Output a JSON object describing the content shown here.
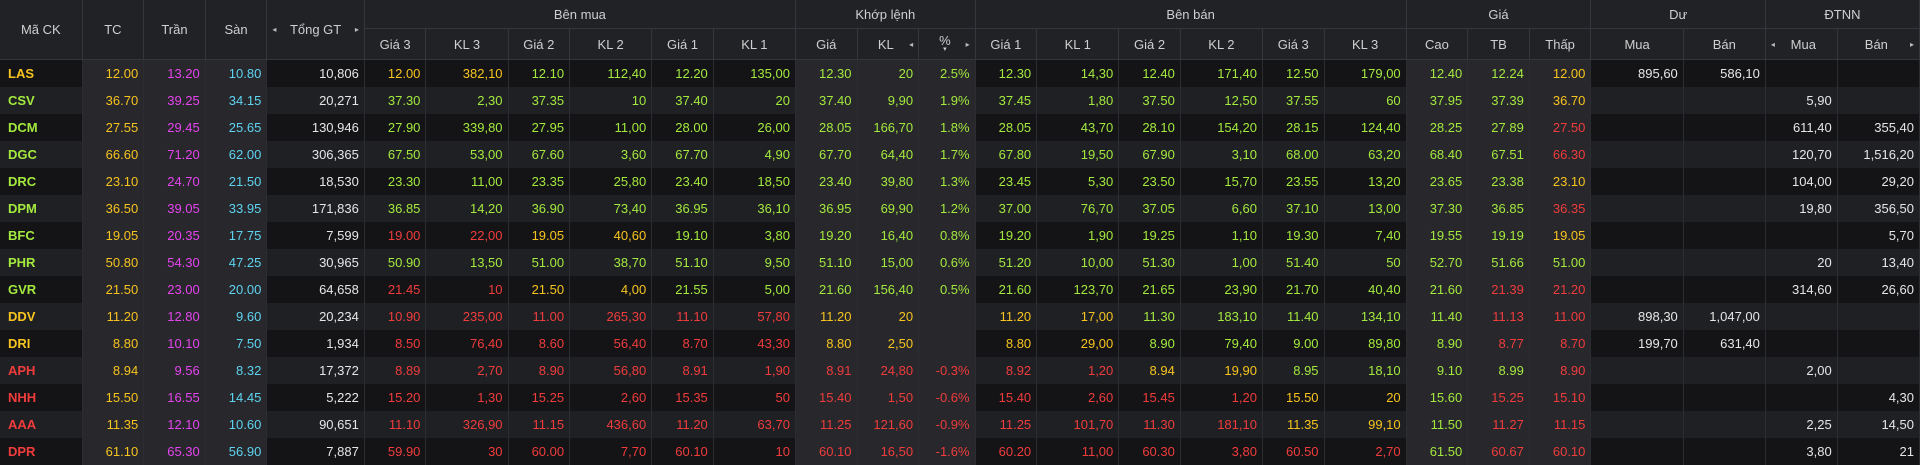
{
  "colors": {
    "up": "#a4ea3e",
    "down": "#f03c3c",
    "ref": "#f7c41f",
    "ceil": "#e544ee",
    "floor": "#5ed4f0",
    "neutral": "#e6e6e6"
  },
  "header": {
    "ma_ck": "Mã CK",
    "tc": "TC",
    "tran": "Trần",
    "san": "Sàn",
    "tong_gt": "Tổng GT",
    "ben_mua": "Bên mua",
    "khop_lenh": "Khớp lệnh",
    "ben_ban": "Bên bán",
    "gia": "Giá",
    "du": "Dư",
    "dtnn": "ĐTNN",
    "gia3": "Giá 3",
    "kl3": "KL 3",
    "gia2": "Giá 2",
    "kl2": "KL 2",
    "gia1": "Giá 1",
    "kl1": "KL 1",
    "kl_gia": "Giá",
    "kl": "KL",
    "pct": "%",
    "cao": "Cao",
    "tb": "TB",
    "thap": "Thấp",
    "mua": "Mua",
    "ban": "Bán",
    "left_arrow": "◂",
    "right_arrow": "▸",
    "sort_down": "▾"
  },
  "rows": [
    {
      "sym": [
        "LAS",
        "ref"
      ],
      "tc": "12.00",
      "tran": "13.20",
      "san": "10.80",
      "tgt": "10,806",
      "b3": [
        "12.00",
        "ref"
      ],
      "bk3": [
        "382,10",
        "ref"
      ],
      "b2": [
        "12.10",
        "up"
      ],
      "bk2": [
        "112,40",
        "up"
      ],
      "b1": [
        "12.20",
        "up"
      ],
      "bk1": [
        "135,00",
        "up"
      ],
      "m": [
        "12.30",
        "up"
      ],
      "mk": [
        "20",
        "up"
      ],
      "pct": [
        "2.5%",
        "up"
      ],
      "s1": [
        "12.30",
        "up"
      ],
      "sk1": [
        "14,30",
        "up"
      ],
      "s2": [
        "12.40",
        "up"
      ],
      "sk2": [
        "171,40",
        "up"
      ],
      "s3": [
        "12.50",
        "up"
      ],
      "sk3": [
        "179,00",
        "up"
      ],
      "cao": [
        "12.40",
        "up"
      ],
      "tb": [
        "12.24",
        "up"
      ],
      "thap": [
        "12.00",
        "ref"
      ],
      "du_mua": "895,60",
      "du_ban": "586,10",
      "nn_mua": "",
      "nn_ban": ""
    },
    {
      "sym": [
        "CSV",
        "up"
      ],
      "tc": "36.70",
      "tran": "39.25",
      "san": "34.15",
      "tgt": "20,271",
      "b3": [
        "37.30",
        "up"
      ],
      "bk3": [
        "2,30",
        "up"
      ],
      "b2": [
        "37.35",
        "up"
      ],
      "bk2": [
        "10",
        "up"
      ],
      "b1": [
        "37.40",
        "up"
      ],
      "bk1": [
        "20",
        "up"
      ],
      "m": [
        "37.40",
        "up"
      ],
      "mk": [
        "9,90",
        "up"
      ],
      "pct": [
        "1.9%",
        "up"
      ],
      "s1": [
        "37.45",
        "up"
      ],
      "sk1": [
        "1,80",
        "up"
      ],
      "s2": [
        "37.50",
        "up"
      ],
      "sk2": [
        "12,50",
        "up"
      ],
      "s3": [
        "37.55",
        "up"
      ],
      "sk3": [
        "60",
        "up"
      ],
      "cao": [
        "37.95",
        "up"
      ],
      "tb": [
        "37.39",
        "up"
      ],
      "thap": [
        "36.70",
        "ref"
      ],
      "du_mua": "",
      "du_ban": "",
      "nn_mua": "5,90",
      "nn_ban": ""
    },
    {
      "sym": [
        "DCM",
        "up"
      ],
      "tc": "27.55",
      "tran": "29.45",
      "san": "25.65",
      "tgt": "130,946",
      "b3": [
        "27.90",
        "up"
      ],
      "bk3": [
        "339,80",
        "up"
      ],
      "b2": [
        "27.95",
        "up"
      ],
      "bk2": [
        "11,00",
        "up"
      ],
      "b1": [
        "28.00",
        "up"
      ],
      "bk1": [
        "26,00",
        "up"
      ],
      "m": [
        "28.05",
        "up"
      ],
      "mk": [
        "166,70",
        "up"
      ],
      "pct": [
        "1.8%",
        "up"
      ],
      "s1": [
        "28.05",
        "up"
      ],
      "sk1": [
        "43,70",
        "up"
      ],
      "s2": [
        "28.10",
        "up"
      ],
      "sk2": [
        "154,20",
        "up"
      ],
      "s3": [
        "28.15",
        "up"
      ],
      "sk3": [
        "124,40",
        "up"
      ],
      "cao": [
        "28.25",
        "up"
      ],
      "tb": [
        "27.89",
        "up"
      ],
      "thap": [
        "27.50",
        "down"
      ],
      "du_mua": "",
      "du_ban": "",
      "nn_mua": "611,40",
      "nn_ban": "355,40"
    },
    {
      "sym": [
        "DGC",
        "up"
      ],
      "tc": "66.60",
      "tran": "71.20",
      "san": "62.00",
      "tgt": "306,365",
      "b3": [
        "67.50",
        "up"
      ],
      "bk3": [
        "53,00",
        "up"
      ],
      "b2": [
        "67.60",
        "up"
      ],
      "bk2": [
        "3,60",
        "up"
      ],
      "b1": [
        "67.70",
        "up"
      ],
      "bk1": [
        "4,90",
        "up"
      ],
      "m": [
        "67.70",
        "up"
      ],
      "mk": [
        "64,40",
        "up"
      ],
      "pct": [
        "1.7%",
        "up"
      ],
      "s1": [
        "67.80",
        "up"
      ],
      "sk1": [
        "19,50",
        "up"
      ],
      "s2": [
        "67.90",
        "up"
      ],
      "sk2": [
        "3,10",
        "up"
      ],
      "s3": [
        "68.00",
        "up"
      ],
      "sk3": [
        "63,20",
        "up"
      ],
      "cao": [
        "68.40",
        "up"
      ],
      "tb": [
        "67.51",
        "up"
      ],
      "thap": [
        "66.30",
        "down"
      ],
      "du_mua": "",
      "du_ban": "",
      "nn_mua": "120,70",
      "nn_ban": "1,516,20"
    },
    {
      "sym": [
        "DRC",
        "up"
      ],
      "tc": "23.10",
      "tran": "24.70",
      "san": "21.50",
      "tgt": "18,530",
      "b3": [
        "23.30",
        "up"
      ],
      "bk3": [
        "11,00",
        "up"
      ],
      "b2": [
        "23.35",
        "up"
      ],
      "bk2": [
        "25,80",
        "up"
      ],
      "b1": [
        "23.40",
        "up"
      ],
      "bk1": [
        "18,50",
        "up"
      ],
      "m": [
        "23.40",
        "up"
      ],
      "mk": [
        "39,80",
        "up"
      ],
      "pct": [
        "1.3%",
        "up"
      ],
      "s1": [
        "23.45",
        "up"
      ],
      "sk1": [
        "5,30",
        "up"
      ],
      "s2": [
        "23.50",
        "up"
      ],
      "sk2": [
        "15,70",
        "up"
      ],
      "s3": [
        "23.55",
        "up"
      ],
      "sk3": [
        "13,20",
        "up"
      ],
      "cao": [
        "23.65",
        "up"
      ],
      "tb": [
        "23.38",
        "up"
      ],
      "thap": [
        "23.10",
        "ref"
      ],
      "du_mua": "",
      "du_ban": "",
      "nn_mua": "104,00",
      "nn_ban": "29,20"
    },
    {
      "sym": [
        "DPM",
        "up"
      ],
      "tc": "36.50",
      "tran": "39.05",
      "san": "33.95",
      "tgt": "171,836",
      "b3": [
        "36.85",
        "up"
      ],
      "bk3": [
        "14,20",
        "up"
      ],
      "b2": [
        "36.90",
        "up"
      ],
      "bk2": [
        "73,40",
        "up"
      ],
      "b1": [
        "36.95",
        "up"
      ],
      "bk1": [
        "36,10",
        "up"
      ],
      "m": [
        "36.95",
        "up"
      ],
      "mk": [
        "69,90",
        "up"
      ],
      "pct": [
        "1.2%",
        "up"
      ],
      "s1": [
        "37.00",
        "up"
      ],
      "sk1": [
        "76,70",
        "up"
      ],
      "s2": [
        "37.05",
        "up"
      ],
      "sk2": [
        "6,60",
        "up"
      ],
      "s3": [
        "37.10",
        "up"
      ],
      "sk3": [
        "13,00",
        "up"
      ],
      "cao": [
        "37.30",
        "up"
      ],
      "tb": [
        "36.85",
        "up"
      ],
      "thap": [
        "36.35",
        "down"
      ],
      "du_mua": "",
      "du_ban": "",
      "nn_mua": "19,80",
      "nn_ban": "356,50"
    },
    {
      "sym": [
        "BFC",
        "up"
      ],
      "tc": "19.05",
      "tran": "20.35",
      "san": "17.75",
      "tgt": "7,599",
      "b3": [
        "19.00",
        "down"
      ],
      "bk3": [
        "22,00",
        "down"
      ],
      "b2": [
        "19.05",
        "ref"
      ],
      "bk2": [
        "40,60",
        "ref"
      ],
      "b1": [
        "19.10",
        "up"
      ],
      "bk1": [
        "3,80",
        "up"
      ],
      "m": [
        "19.20",
        "up"
      ],
      "mk": [
        "16,40",
        "up"
      ],
      "pct": [
        "0.8%",
        "up"
      ],
      "s1": [
        "19.20",
        "up"
      ],
      "sk1": [
        "1,90",
        "up"
      ],
      "s2": [
        "19.25",
        "up"
      ],
      "sk2": [
        "1,10",
        "up"
      ],
      "s3": [
        "19.30",
        "up"
      ],
      "sk3": [
        "7,40",
        "up"
      ],
      "cao": [
        "19.55",
        "up"
      ],
      "tb": [
        "19.19",
        "up"
      ],
      "thap": [
        "19.05",
        "ref"
      ],
      "du_mua": "",
      "du_ban": "",
      "nn_mua": "",
      "nn_ban": "5,70"
    },
    {
      "sym": [
        "PHR",
        "up"
      ],
      "tc": "50.80",
      "tran": "54.30",
      "san": "47.25",
      "tgt": "30,965",
      "b3": [
        "50.90",
        "up"
      ],
      "bk3": [
        "13,50",
        "up"
      ],
      "b2": [
        "51.00",
        "up"
      ],
      "bk2": [
        "38,70",
        "up"
      ],
      "b1": [
        "51.10",
        "up"
      ],
      "bk1": [
        "9,50",
        "up"
      ],
      "m": [
        "51.10",
        "up"
      ],
      "mk": [
        "15,00",
        "up"
      ],
      "pct": [
        "0.6%",
        "up"
      ],
      "s1": [
        "51.20",
        "up"
      ],
      "sk1": [
        "10,00",
        "up"
      ],
      "s2": [
        "51.30",
        "up"
      ],
      "sk2": [
        "1,00",
        "up"
      ],
      "s3": [
        "51.40",
        "up"
      ],
      "sk3": [
        "50",
        "up"
      ],
      "cao": [
        "52.70",
        "up"
      ],
      "tb": [
        "51.66",
        "up"
      ],
      "thap": [
        "51.00",
        "up"
      ],
      "du_mua": "",
      "du_ban": "",
      "nn_mua": "20",
      "nn_ban": "13,40"
    },
    {
      "sym": [
        "GVR",
        "up"
      ],
      "tc": "21.50",
      "tran": "23.00",
      "san": "20.00",
      "tgt": "64,658",
      "b3": [
        "21.45",
        "down"
      ],
      "bk3": [
        "10",
        "down"
      ],
      "b2": [
        "21.50",
        "ref"
      ],
      "bk2": [
        "4,00",
        "ref"
      ],
      "b1": [
        "21.55",
        "up"
      ],
      "bk1": [
        "5,00",
        "up"
      ],
      "m": [
        "21.60",
        "up"
      ],
      "mk": [
        "156,40",
        "up"
      ],
      "pct": [
        "0.5%",
        "up"
      ],
      "s1": [
        "21.60",
        "up"
      ],
      "sk1": [
        "123,70",
        "up"
      ],
      "s2": [
        "21.65",
        "up"
      ],
      "sk2": [
        "23,90",
        "up"
      ],
      "s3": [
        "21.70",
        "up"
      ],
      "sk3": [
        "40,40",
        "up"
      ],
      "cao": [
        "21.60",
        "up"
      ],
      "tb": [
        "21.39",
        "down"
      ],
      "thap": [
        "21.20",
        "down"
      ],
      "du_mua": "",
      "du_ban": "",
      "nn_mua": "314,60",
      "nn_ban": "26,60"
    },
    {
      "sym": [
        "DDV",
        "ref"
      ],
      "tc": "11.20",
      "tran": "12.80",
      "san": "9.60",
      "tgt": "20,234",
      "b3": [
        "10.90",
        "down"
      ],
      "bk3": [
        "235,00",
        "down"
      ],
      "b2": [
        "11.00",
        "down"
      ],
      "bk2": [
        "265,30",
        "down"
      ],
      "b1": [
        "11.10",
        "down"
      ],
      "bk1": [
        "57,80",
        "down"
      ],
      "m": [
        "11.20",
        "ref"
      ],
      "mk": [
        "20",
        "ref"
      ],
      "pct": [
        "",
        ""
      ],
      "s1": [
        "11.20",
        "ref"
      ],
      "sk1": [
        "17,00",
        "ref"
      ],
      "s2": [
        "11.30",
        "up"
      ],
      "sk2": [
        "183,10",
        "up"
      ],
      "s3": [
        "11.40",
        "up"
      ],
      "sk3": [
        "134,10",
        "up"
      ],
      "cao": [
        "11.40",
        "up"
      ],
      "tb": [
        "11.13",
        "down"
      ],
      "thap": [
        "11.00",
        "down"
      ],
      "du_mua": "898,30",
      "du_ban": "1,047,00",
      "nn_mua": "",
      "nn_ban": ""
    },
    {
      "sym": [
        "DRI",
        "ref"
      ],
      "tc": "8.80",
      "tran": "10.10",
      "san": "7.50",
      "tgt": "1,934",
      "b3": [
        "8.50",
        "down"
      ],
      "bk3": [
        "76,40",
        "down"
      ],
      "b2": [
        "8.60",
        "down"
      ],
      "bk2": [
        "56,40",
        "down"
      ],
      "b1": [
        "8.70",
        "down"
      ],
      "bk1": [
        "43,30",
        "down"
      ],
      "m": [
        "8.80",
        "ref"
      ],
      "mk": [
        "2,50",
        "ref"
      ],
      "pct": [
        "",
        ""
      ],
      "s1": [
        "8.80",
        "ref"
      ],
      "sk1": [
        "29,00",
        "ref"
      ],
      "s2": [
        "8.90",
        "up"
      ],
      "sk2": [
        "79,40",
        "up"
      ],
      "s3": [
        "9.00",
        "up"
      ],
      "sk3": [
        "89,80",
        "up"
      ],
      "cao": [
        "8.90",
        "up"
      ],
      "tb": [
        "8.77",
        "down"
      ],
      "thap": [
        "8.70",
        "down"
      ],
      "du_mua": "199,70",
      "du_ban": "631,40",
      "nn_mua": "",
      "nn_ban": ""
    },
    {
      "sym": [
        "APH",
        "down"
      ],
      "tc": "8.94",
      "tran": "9.56",
      "san": "8.32",
      "tgt": "17,372",
      "b3": [
        "8.89",
        "down"
      ],
      "bk3": [
        "2,70",
        "down"
      ],
      "b2": [
        "8.90",
        "down"
      ],
      "bk2": [
        "56,80",
        "down"
      ],
      "b1": [
        "8.91",
        "down"
      ],
      "bk1": [
        "1,90",
        "down"
      ],
      "m": [
        "8.91",
        "down"
      ],
      "mk": [
        "24,80",
        "down"
      ],
      "pct": [
        "-0.3%",
        "down"
      ],
      "s1": [
        "8.92",
        "down"
      ],
      "sk1": [
        "1,20",
        "down"
      ],
      "s2": [
        "8.94",
        "ref"
      ],
      "sk2": [
        "19,90",
        "ref"
      ],
      "s3": [
        "8.95",
        "up"
      ],
      "sk3": [
        "18,10",
        "up"
      ],
      "cao": [
        "9.10",
        "up"
      ],
      "tb": [
        "8.99",
        "up"
      ],
      "thap": [
        "8.90",
        "down"
      ],
      "du_mua": "",
      "du_ban": "",
      "nn_mua": "2,00",
      "nn_ban": ""
    },
    {
      "sym": [
        "NHH",
        "down"
      ],
      "tc": "15.50",
      "tran": "16.55",
      "san": "14.45",
      "tgt": "5,222",
      "b3": [
        "15.20",
        "down"
      ],
      "bk3": [
        "1,30",
        "down"
      ],
      "b2": [
        "15.25",
        "down"
      ],
      "bk2": [
        "2,60",
        "down"
      ],
      "b1": [
        "15.35",
        "down"
      ],
      "bk1": [
        "50",
        "down"
      ],
      "m": [
        "15.40",
        "down"
      ],
      "mk": [
        "1,50",
        "down"
      ],
      "pct": [
        "-0.6%",
        "down"
      ],
      "s1": [
        "15.40",
        "down"
      ],
      "sk1": [
        "2,60",
        "down"
      ],
      "s2": [
        "15.45",
        "down"
      ],
      "sk2": [
        "1,20",
        "down"
      ],
      "s3": [
        "15.50",
        "ref"
      ],
      "sk3": [
        "20",
        "ref"
      ],
      "cao": [
        "15.60",
        "up"
      ],
      "tb": [
        "15.25",
        "down"
      ],
      "thap": [
        "15.10",
        "down"
      ],
      "du_mua": "",
      "du_ban": "",
      "nn_mua": "",
      "nn_ban": "4,30"
    },
    {
      "sym": [
        "AAA",
        "down"
      ],
      "tc": "11.35",
      "tran": "12.10",
      "san": "10.60",
      "tgt": "90,651",
      "b3": [
        "11.10",
        "down"
      ],
      "bk3": [
        "326,90",
        "down"
      ],
      "b2": [
        "11.15",
        "down"
      ],
      "bk2": [
        "436,60",
        "down"
      ],
      "b1": [
        "11.20",
        "down"
      ],
      "bk1": [
        "63,70",
        "down"
      ],
      "m": [
        "11.25",
        "down"
      ],
      "mk": [
        "121,60",
        "down"
      ],
      "pct": [
        "-0.9%",
        "down"
      ],
      "s1": [
        "11.25",
        "down"
      ],
      "sk1": [
        "101,70",
        "down"
      ],
      "s2": [
        "11.30",
        "down"
      ],
      "sk2": [
        "181,10",
        "down"
      ],
      "s3": [
        "11.35",
        "ref"
      ],
      "sk3": [
        "99,10",
        "ref"
      ],
      "cao": [
        "11.50",
        "up"
      ],
      "tb": [
        "11.27",
        "down"
      ],
      "thap": [
        "11.15",
        "down"
      ],
      "du_mua": "",
      "du_ban": "",
      "nn_mua": "2,25",
      "nn_ban": "14,50"
    },
    {
      "sym": [
        "DPR",
        "down"
      ],
      "tc": "61.10",
      "tran": "65.30",
      "san": "56.90",
      "tgt": "7,887",
      "b3": [
        "59.90",
        "down"
      ],
      "bk3": [
        "30",
        "down"
      ],
      "b2": [
        "60.00",
        "down"
      ],
      "bk2": [
        "7,70",
        "down"
      ],
      "b1": [
        "60.10",
        "down"
      ],
      "bk1": [
        "10",
        "down"
      ],
      "m": [
        "60.10",
        "down"
      ],
      "mk": [
        "16,50",
        "down"
      ],
      "pct": [
        "-1.6%",
        "down"
      ],
      "s1": [
        "60.20",
        "down"
      ],
      "sk1": [
        "11,00",
        "down"
      ],
      "s2": [
        "60.30",
        "down"
      ],
      "sk2": [
        "3,80",
        "down"
      ],
      "s3": [
        "60.50",
        "down"
      ],
      "sk3": [
        "2,70",
        "down"
      ],
      "cao": [
        "61.50",
        "up"
      ],
      "tb": [
        "60.67",
        "down"
      ],
      "thap": [
        "60.10",
        "down"
      ],
      "du_mua": "",
      "du_ban": "",
      "nn_mua": "3,80",
      "nn_ban": "21"
    }
  ]
}
